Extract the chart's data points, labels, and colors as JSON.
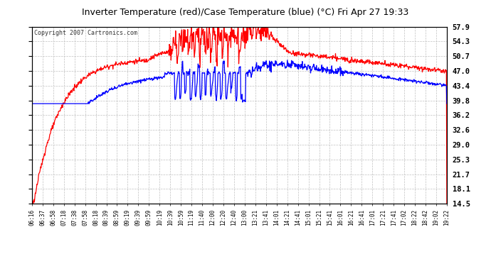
{
  "title": "Inverter Temperature (red)/Case Temperature (blue) (°C) Fri Apr 27 19:33",
  "copyright": "Copyright 2007 Cartronics.com",
  "background_color": "#ffffff",
  "plot_bg_color": "#ffffff",
  "grid_color": "#c0c0c0",
  "yticks": [
    14.5,
    18.1,
    21.7,
    25.3,
    29.0,
    32.6,
    36.2,
    39.8,
    43.4,
    47.0,
    50.7,
    54.3,
    57.9
  ],
  "ymin": 14.5,
  "ymax": 57.9,
  "x_labels": [
    "06:16",
    "06:37",
    "06:58",
    "07:18",
    "07:38",
    "07:58",
    "08:18",
    "08:39",
    "08:59",
    "09:19",
    "09:39",
    "09:59",
    "10:19",
    "10:39",
    "10:59",
    "11:19",
    "11:40",
    "12:00",
    "12:20",
    "12:40",
    "13:00",
    "13:21",
    "13:41",
    "14:01",
    "14:21",
    "14:41",
    "15:01",
    "15:21",
    "15:41",
    "16:01",
    "16:21",
    "16:41",
    "17:01",
    "17:21",
    "17:41",
    "17:02",
    "18:22",
    "18:42",
    "19:02",
    "19:22"
  ]
}
